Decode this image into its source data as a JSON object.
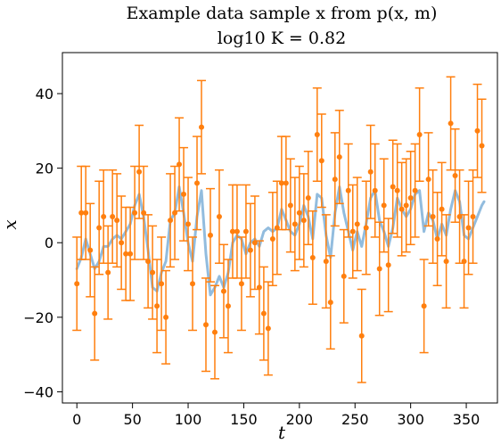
{
  "chart_data": {
    "type": "scatter",
    "title_line1": "Example data sample x from p(x, m)",
    "title_line2": "log10 K = 0.82",
    "xlabel": "t",
    "ylabel": "x",
    "xlim": [
      -13,
      378
    ],
    "ylim": [
      -43,
      51
    ],
    "xticks": [
      0,
      50,
      100,
      150,
      200,
      250,
      300,
      350
    ],
    "yticks": [
      -40,
      -20,
      0,
      20,
      40
    ],
    "ytick_labels": [
      "−40",
      "−20",
      "0",
      "20",
      "40"
    ],
    "grid": false,
    "colors": {
      "points": "#ff7f0e",
      "signal": "#7fb0d8"
    },
    "observations": {
      "name": "observations",
      "error_bar_halfwidth": 12.5,
      "x": [
        0,
        4,
        8,
        12,
        16,
        20,
        24,
        28,
        32,
        36,
        40,
        44,
        48,
        52,
        56,
        60,
        64,
        68,
        72,
        76,
        80,
        84,
        88,
        92,
        96,
        100,
        104,
        108,
        112,
        116,
        120,
        124,
        128,
        132,
        136,
        140,
        144,
        148,
        152,
        156,
        160,
        164,
        168,
        172,
        176,
        180,
        184,
        188,
        192,
        196,
        200,
        204,
        208,
        212,
        216,
        220,
        224,
        228,
        232,
        236,
        240,
        244,
        248,
        252,
        256,
        260,
        264,
        268,
        272,
        276,
        280,
        284,
        288,
        292,
        296,
        300,
        304,
        308,
        312,
        316,
        320,
        324,
        328,
        332,
        336,
        340,
        344,
        348,
        352,
        356,
        360,
        364
      ],
      "y": [
        -11,
        8,
        8,
        -2,
        -19,
        4,
        7,
        -8,
        7,
        6,
        0,
        -3,
        -3,
        8,
        19,
        8,
        -5,
        -8,
        -17,
        -11,
        -20,
        6,
        8,
        21,
        13,
        5,
        -11,
        16,
        31,
        -22,
        2,
        -24,
        7,
        -13,
        -17,
        3,
        3,
        -11,
        3,
        -2,
        0,
        -12,
        -19,
        -23,
        1,
        4,
        16,
        16,
        10,
        5,
        8,
        6,
        12,
        -4,
        29,
        22,
        -5,
        -16,
        17,
        23,
        -9,
        14,
        3,
        5,
        -25,
        4,
        19,
        14,
        -7,
        10,
        -6,
        15,
        14,
        9,
        10,
        12,
        14,
        29,
        -17,
        17,
        7,
        1,
        9,
        -5,
        32,
        18,
        7,
        -5,
        4,
        7,
        30,
        26
      ]
    },
    "signal": {
      "name": "signal",
      "x": [
        0,
        4,
        8,
        12,
        16,
        20,
        24,
        28,
        32,
        36,
        40,
        44,
        48,
        52,
        56,
        60,
        64,
        68,
        72,
        76,
        80,
        84,
        88,
        92,
        96,
        100,
        104,
        108,
        112,
        116,
        120,
        124,
        128,
        132,
        136,
        140,
        144,
        148,
        152,
        156,
        160,
        164,
        168,
        172,
        176,
        180,
        184,
        188,
        192,
        196,
        200,
        204,
        208,
        212,
        216,
        220,
        224,
        228,
        232,
        236,
        240,
        244,
        248,
        252,
        256,
        260,
        264,
        268,
        272,
        276,
        280,
        284,
        288,
        292,
        296,
        300,
        304,
        308,
        312,
        316,
        320,
        324,
        328,
        332,
        336,
        340,
        344,
        348,
        352,
        356,
        360,
        364,
        366
      ],
      "y": [
        -7,
        -4,
        1,
        -3,
        -7,
        -5,
        -1,
        -1,
        1,
        2,
        1,
        3,
        5,
        10,
        13,
        7,
        -2,
        -12,
        -13,
        -8,
        -5,
        6,
        8,
        15,
        8,
        0,
        -5,
        7,
        14,
        -3,
        -14,
        -12,
        -9,
        -12,
        -8,
        0,
        2,
        1,
        -3,
        0,
        1,
        -1,
        3,
        4,
        3,
        4,
        9,
        6,
        3,
        2,
        5,
        10,
        7,
        1,
        13,
        12,
        2,
        -4,
        8,
        15,
        8,
        3,
        -2,
        3,
        -1,
        5,
        12,
        14,
        6,
        3,
        -1,
        4,
        12,
        9,
        7,
        9,
        13,
        14,
        3,
        8,
        6,
        1,
        5,
        2,
        9,
        14,
        11,
        2,
        1,
        4,
        7,
        10,
        11
      ]
    }
  }
}
